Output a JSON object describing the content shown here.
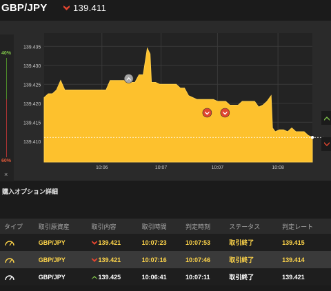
{
  "header": {
    "pair": "GBP/JPY",
    "rate": "139.411",
    "direction_icon": "down-arrow-icon",
    "colors": {
      "down": "#e0452f",
      "up": "#7ec04a"
    }
  },
  "sidebar": {
    "top_pct": "40%",
    "bottom_pct": "60%",
    "close": "×"
  },
  "chart_data": {
    "type": "area",
    "color": "#fdc12d",
    "y_ticks": [
      "139.435",
      "139.430",
      "139.425",
      "139.420",
      "139.415",
      "139.410"
    ],
    "x_ticks": [
      "10:06",
      "10:07",
      "10:07",
      "10:08"
    ],
    "ylim": [
      139.4045,
      139.4385
    ],
    "current_rate": 139.411,
    "series": [
      {
        "x": 0,
        "y": 139.4215
      },
      {
        "x": 6,
        "y": 139.4225
      },
      {
        "x": 12,
        "y": 139.4225
      },
      {
        "x": 18,
        "y": 139.4235
      },
      {
        "x": 24,
        "y": 139.426
      },
      {
        "x": 30,
        "y": 139.4235
      },
      {
        "x": 36,
        "y": 139.4235
      },
      {
        "x": 42,
        "y": 139.4235
      },
      {
        "x": 48,
        "y": 139.4235
      },
      {
        "x": 54,
        "y": 139.4235
      },
      {
        "x": 60,
        "y": 139.4235
      },
      {
        "x": 66,
        "y": 139.4235
      },
      {
        "x": 72,
        "y": 139.4235
      },
      {
        "x": 78,
        "y": 139.4235
      },
      {
        "x": 84,
        "y": 139.4235
      },
      {
        "x": 90,
        "y": 139.4235
      },
      {
        "x": 96,
        "y": 139.426
      },
      {
        "x": 102,
        "y": 139.426
      },
      {
        "x": 108,
        "y": 139.426
      },
      {
        "x": 114,
        "y": 139.426
      },
      {
        "x": 120,
        "y": 139.426
      },
      {
        "x": 126,
        "y": 139.4255
      },
      {
        "x": 132,
        "y": 139.4255
      },
      {
        "x": 138,
        "y": 139.4275
      },
      {
        "x": 144,
        "y": 139.4275
      },
      {
        "x": 150,
        "y": 139.4345
      },
      {
        "x": 154,
        "y": 139.433
      },
      {
        "x": 156,
        "y": 139.4255
      },
      {
        "x": 162,
        "y": 139.4255
      },
      {
        "x": 168,
        "y": 139.425
      },
      {
        "x": 174,
        "y": 139.425
      },
      {
        "x": 180,
        "y": 139.425
      },
      {
        "x": 186,
        "y": 139.425
      },
      {
        "x": 192,
        "y": 139.425
      },
      {
        "x": 198,
        "y": 139.424
      },
      {
        "x": 204,
        "y": 139.424
      },
      {
        "x": 210,
        "y": 139.422
      },
      {
        "x": 216,
        "y": 139.4215
      },
      {
        "x": 222,
        "y": 139.421
      },
      {
        "x": 228,
        "y": 139.421
      },
      {
        "x": 234,
        "y": 139.421
      },
      {
        "x": 240,
        "y": 139.421
      },
      {
        "x": 246,
        "y": 139.421
      },
      {
        "x": 252,
        "y": 139.4205
      },
      {
        "x": 258,
        "y": 139.4205
      },
      {
        "x": 264,
        "y": 139.4205
      },
      {
        "x": 270,
        "y": 139.4195
      },
      {
        "x": 276,
        "y": 139.4195
      },
      {
        "x": 282,
        "y": 139.4195
      },
      {
        "x": 288,
        "y": 139.4205
      },
      {
        "x": 294,
        "y": 139.4205
      },
      {
        "x": 300,
        "y": 139.4205
      },
      {
        "x": 306,
        "y": 139.4205
      },
      {
        "x": 312,
        "y": 139.419
      },
      {
        "x": 318,
        "y": 139.4195
      },
      {
        "x": 324,
        "y": 139.4205
      },
      {
        "x": 330,
        "y": 139.422
      },
      {
        "x": 332,
        "y": 139.4135
      },
      {
        "x": 336,
        "y": 139.4125
      },
      {
        "x": 342,
        "y": 139.413
      },
      {
        "x": 348,
        "y": 139.413
      },
      {
        "x": 354,
        "y": 139.4125
      },
      {
        "x": 360,
        "y": 139.4135
      },
      {
        "x": 366,
        "y": 139.4125
      },
      {
        "x": 372,
        "y": 139.4125
      },
      {
        "x": 378,
        "y": 139.4125
      },
      {
        "x": 384,
        "y": 139.4115
      },
      {
        "x": 390,
        "y": 139.411
      }
    ]
  },
  "markers": [
    {
      "kind": "up-marker-icon",
      "x": 123,
      "y": 139.4265,
      "color": "#a5a5a5"
    },
    {
      "kind": "down-marker-icon",
      "x": 237,
      "y": 139.4175,
      "color": "#e0452f"
    },
    {
      "kind": "down-marker-icon",
      "x": 263,
      "y": 139.4175,
      "color": "#e0452f"
    }
  ],
  "right_tabs": [
    {
      "icon": "up-arrow-icon",
      "color": "#7ec04a"
    },
    {
      "icon": "down-arrow-icon",
      "color": "#e0452f"
    }
  ],
  "section": {
    "title": "購入オプション詳細"
  },
  "table": {
    "columns": [
      "タイプ",
      "取引原資産",
      "取引内容",
      "取引時間",
      "判定時刻",
      "ステータス",
      "判定レート"
    ],
    "rows": [
      {
        "type_icon": "gauge-icon",
        "asset": "GBP/JPY",
        "direction": "down",
        "entry": "139.421",
        "time": "10:07:23",
        "judge": "10:07:53",
        "status": "取引終了",
        "result": "139.415"
      },
      {
        "type_icon": "gauge-icon",
        "asset": "GBP/JPY",
        "direction": "down",
        "entry": "139.421",
        "time": "10:07:16",
        "judge": "10:07:46",
        "status": "取引終了",
        "result": "139.414"
      },
      {
        "type_icon": "gauge-icon",
        "asset": "GBP/JPY",
        "direction": "up",
        "entry": "139.425",
        "time": "10:06:41",
        "judge": "10:07:11",
        "status": "取引終了",
        "result": "139.421"
      }
    ]
  }
}
